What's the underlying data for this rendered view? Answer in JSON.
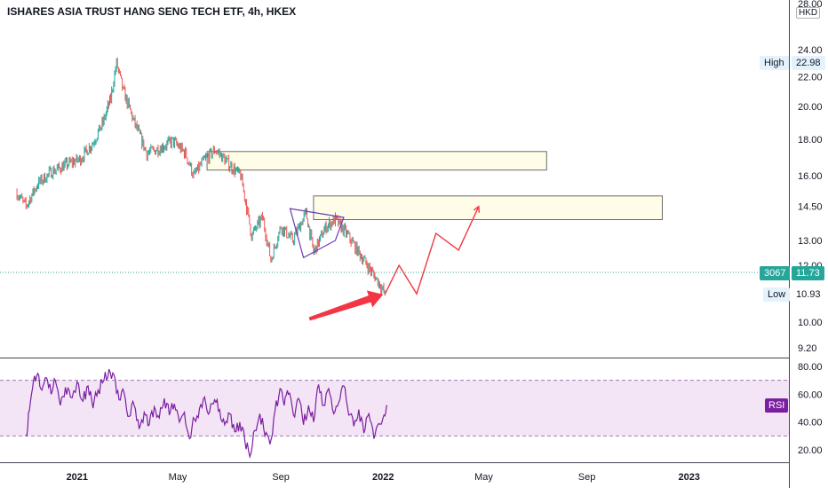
{
  "title": "ISHARES ASIA TRUST HANG SENG TECH ETF, 4h, HKEX",
  "currency": "HKD",
  "top_tick": "28.00",
  "high_label": "High",
  "high_value": "22.98",
  "low_label": "Low",
  "low_value": "10.93",
  "ticker_badge": "3067",
  "last_value": "11.73",
  "rsi_label": "RSI",
  "colors": {
    "up": "#26a69a",
    "down": "#ef5350",
    "rsi_line": "#7b1fa2",
    "rsi_band": "#f3e5f5",
    "zone_fill": "#fffde7",
    "arrow": "#f23645",
    "projection": "#f23645",
    "triangle": "#673ab7",
    "last_line": "#26a69a"
  },
  "chart_data": [
    {
      "type": "candlestick",
      "ylim": [
        9.2,
        28.0
      ],
      "y_scale": "log",
      "y_ticks": [
        "24.00",
        "22.00",
        "20.00",
        "18.00",
        "16.00",
        "14.50",
        "13.00",
        "12.00",
        "10.00",
        "9.20"
      ],
      "x_ticks": [
        "2021",
        "May",
        "Sep",
        "2022",
        "May",
        "Sep",
        "2023"
      ],
      "x_tick_dates": [
        "2021-01-01",
        "2021-05-01",
        "2021-09-01",
        "2022-01-01",
        "2022-05-01",
        "2022-09-01",
        "2023-01-01"
      ],
      "x_range": [
        "2020-10-01",
        "2023-04-30"
      ],
      "price_path": [
        [
          "2020-10-20",
          15.2
        ],
        [
          "2020-11-01",
          14.5
        ],
        [
          "2020-11-15",
          15.6
        ],
        [
          "2020-12-01",
          16.2
        ],
        [
          "2020-12-20",
          16.6
        ],
        [
          "2021-01-05",
          16.9
        ],
        [
          "2021-01-20",
          17.8
        ],
        [
          "2021-02-01",
          19.0
        ],
        [
          "2021-02-10",
          20.5
        ],
        [
          "2021-02-17",
          22.98
        ],
        [
          "2021-02-25",
          21.0
        ],
        [
          "2021-03-10",
          19.0
        ],
        [
          "2021-03-25",
          17.2
        ],
        [
          "2021-04-10",
          17.5
        ],
        [
          "2021-04-25",
          17.9
        ],
        [
          "2021-05-10",
          17.2
        ],
        [
          "2021-05-20",
          16.0
        ],
        [
          "2021-06-01",
          16.8
        ],
        [
          "2021-06-15",
          17.4
        ],
        [
          "2021-07-01",
          16.6
        ],
        [
          "2021-07-15",
          16.0
        ],
        [
          "2021-07-28",
          13.2
        ],
        [
          "2021-08-10",
          14.0
        ],
        [
          "2021-08-20",
          12.2
        ],
        [
          "2021-09-01",
          13.6
        ],
        [
          "2021-09-15",
          13.0
        ],
        [
          "2021-10-01",
          14.2
        ],
        [
          "2021-10-10",
          12.5
        ],
        [
          "2021-10-25",
          13.6
        ],
        [
          "2021-11-05",
          13.9
        ],
        [
          "2021-11-20",
          13.2
        ],
        [
          "2021-12-01",
          12.6
        ],
        [
          "2021-12-15",
          11.9
        ],
        [
          "2021-12-28",
          11.3
        ],
        [
          "2022-01-03",
          10.93
        ]
      ],
      "zones": [
        {
          "from": "2021-06-05",
          "to": "2022-07-15",
          "high": 17.3,
          "low": 16.3
        },
        {
          "from": "2021-10-10",
          "to": "2022-11-30",
          "high": 15.0,
          "low": 13.9
        }
      ],
      "triangle": [
        [
          "2021-09-12",
          14.4
        ],
        [
          "2021-11-15",
          14.0
        ],
        [
          "2021-11-05",
          13.0
        ],
        [
          "2021-09-28",
          12.3
        ]
      ],
      "projection": [
        [
          "2022-01-03",
          10.93
        ],
        [
          "2022-01-20",
          12.0
        ],
        [
          "2022-02-10",
          10.95
        ],
        [
          "2022-03-05",
          13.3
        ],
        [
          "2022-04-01",
          12.6
        ],
        [
          "2022-04-25",
          14.5
        ]
      ],
      "arrow": {
        "from": [
          "2021-10-05",
          10.1
        ],
        "to": [
          "2022-01-01",
          10.93
        ]
      }
    },
    {
      "type": "line",
      "name": "RSI",
      "ylim": [
        10,
        88
      ],
      "y_ticks": [
        "80.00",
        "60.00",
        "40.00",
        "20.00"
      ],
      "band": [
        30,
        70
      ],
      "x_range": [
        "2020-10-01",
        "2023-04-30"
      ],
      "values": [
        [
          "2020-11-01",
          31
        ],
        [
          "2020-11-05",
          48
        ],
        [
          "2020-11-10",
          70
        ],
        [
          "2020-11-15",
          75
        ],
        [
          "2020-11-20",
          63
        ],
        [
          "2020-11-25",
          72
        ],
        [
          "2020-12-01",
          60
        ],
        [
          "2020-12-06",
          70
        ],
        [
          "2020-12-12",
          52
        ],
        [
          "2020-12-18",
          65
        ],
        [
          "2020-12-24",
          58
        ],
        [
          "2021-01-01",
          69
        ],
        [
          "2021-01-08",
          55
        ],
        [
          "2021-01-14",
          66
        ],
        [
          "2021-01-20",
          50
        ],
        [
          "2021-01-26",
          63
        ],
        [
          "2021-02-02",
          70
        ],
        [
          "2021-02-08",
          78
        ],
        [
          "2021-02-14",
          74
        ],
        [
          "2021-02-20",
          56
        ],
        [
          "2021-02-26",
          61
        ],
        [
          "2021-03-04",
          44
        ],
        [
          "2021-03-10",
          52
        ],
        [
          "2021-03-16",
          35
        ],
        [
          "2021-03-22",
          47
        ],
        [
          "2021-03-28",
          38
        ],
        [
          "2021-04-03",
          51
        ],
        [
          "2021-04-09",
          43
        ],
        [
          "2021-04-15",
          57
        ],
        [
          "2021-04-21",
          45
        ],
        [
          "2021-04-27",
          53
        ],
        [
          "2021-05-03",
          40
        ],
        [
          "2021-05-09",
          47
        ],
        [
          "2021-05-15",
          28
        ],
        [
          "2021-05-21",
          42
        ],
        [
          "2021-05-27",
          50
        ],
        [
          "2021-06-02",
          58
        ],
        [
          "2021-06-08",
          47
        ],
        [
          "2021-06-14",
          56
        ],
        [
          "2021-06-20",
          49
        ],
        [
          "2021-06-26",
          38
        ],
        [
          "2021-07-02",
          46
        ],
        [
          "2021-07-08",
          33
        ],
        [
          "2021-07-14",
          40
        ],
        [
          "2021-07-20",
          27
        ],
        [
          "2021-07-26",
          15
        ],
        [
          "2021-08-01",
          34
        ],
        [
          "2021-08-07",
          46
        ],
        [
          "2021-08-13",
          30
        ],
        [
          "2021-08-19",
          24
        ],
        [
          "2021-08-25",
          48
        ],
        [
          "2021-08-31",
          64
        ],
        [
          "2021-09-05",
          52
        ],
        [
          "2021-09-10",
          60
        ],
        [
          "2021-09-16",
          45
        ],
        [
          "2021-09-22",
          57
        ],
        [
          "2021-09-28",
          38
        ],
        [
          "2021-10-04",
          52
        ],
        [
          "2021-10-10",
          40
        ],
        [
          "2021-10-16",
          67
        ],
        [
          "2021-10-22",
          52
        ],
        [
          "2021-10-28",
          64
        ],
        [
          "2021-11-03",
          46
        ],
        [
          "2021-11-09",
          54
        ],
        [
          "2021-11-15",
          66
        ],
        [
          "2021-11-21",
          45
        ],
        [
          "2021-11-27",
          37
        ],
        [
          "2021-12-03",
          49
        ],
        [
          "2021-12-09",
          32
        ],
        [
          "2021-12-15",
          46
        ],
        [
          "2021-12-21",
          28
        ],
        [
          "2021-12-27",
          39
        ],
        [
          "2022-01-02",
          45
        ],
        [
          "2022-01-06",
          52
        ]
      ]
    }
  ]
}
